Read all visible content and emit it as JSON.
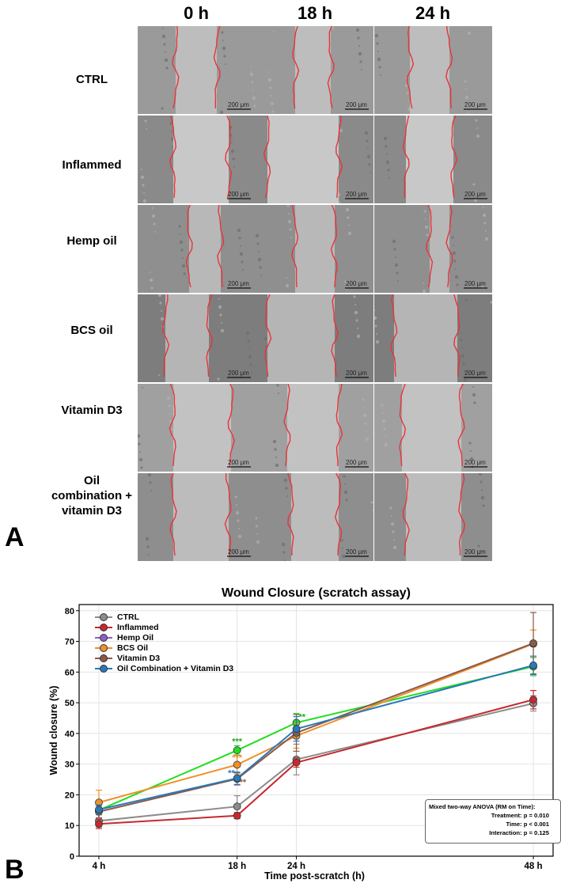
{
  "panel_a": {
    "letter": "A",
    "columns": [
      "0 h",
      "18 h",
      "24 h"
    ],
    "rows": [
      {
        "label": "CTRL"
      },
      {
        "label": "Inflammed"
      },
      {
        "label": "Hemp oil"
      },
      {
        "label": "BCS oil"
      },
      {
        "label": "Vitamin D3"
      },
      {
        "label": "Oil combination + vitamin D3"
      }
    ],
    "scale_bar": "200 μm"
  },
  "panel_b": {
    "letter": "B",
    "stats_box": {
      "title": "Mixed two-way ANOVA (RM on Time):",
      "treatment": "Treatment:  p = 0.010",
      "time": "Time:        p < 0.001",
      "interaction": "Interaction: p = 0.125"
    }
  },
  "chart_data": {
    "type": "line",
    "title": "Wound Closure (scratch assay)",
    "xlabel": "Time post-scratch (h)",
    "ylabel": "Wound closure (%)",
    "x": [
      4,
      18,
      24,
      48
    ],
    "x_tick_labels": [
      "4 h",
      "18 h",
      "24 h",
      "48 h"
    ],
    "xlim": [
      2,
      50
    ],
    "ylim": [
      0,
      82
    ],
    "y_ticks": [
      0,
      10,
      20,
      30,
      40,
      50,
      60,
      70,
      80
    ],
    "grid": true,
    "legend_position": "top-left",
    "series": [
      {
        "name": "CTRL",
        "color": "#8c8c8c",
        "values": [
          11.5,
          16.2,
          31.5,
          49.8
        ],
        "errors": [
          2,
          3.5,
          5,
          2.5
        ]
      },
      {
        "name": "Inflammed",
        "color": "#c8282d",
        "values": [
          10.5,
          13.2,
          30.5,
          51
        ],
        "errors": [
          1.5,
          1,
          1.5,
          3
        ]
      },
      {
        "name": "Hemp Oil",
        "color": "#22dd22",
        "legend_color": "#8a5fc8",
        "values": [
          15,
          34.5,
          43.5,
          61.8
        ],
        "errors": [
          1.5,
          1.5,
          3,
          3
        ]
      },
      {
        "name": "BCS Oil",
        "color": "#f0902a",
        "values": [
          17.5,
          29.8,
          39.2,
          69.2
        ],
        "errors": [
          4,
          3,
          4,
          4.5
        ]
      },
      {
        "name": "Vitamin D3",
        "color": "#8b5a4a",
        "values": [
          14.5,
          25.2,
          40.2,
          69.4
        ],
        "errors": [
          2,
          2,
          6,
          10
        ]
      },
      {
        "name": "Oil Combination + Vitamin D3",
        "color": "#2a78b8",
        "values": [
          15.2,
          25.4,
          41.5,
          62.2
        ],
        "errors": [
          1.5,
          2,
          4,
          3
        ]
      }
    ],
    "annotations": [
      {
        "text": "***",
        "x": 18,
        "y": 36.5,
        "color": "#22aa22"
      },
      {
        "text": "***",
        "x": 18,
        "y": 31.2,
        "color": "#f0902a"
      },
      {
        "text": "**",
        "x": 18,
        "y": 26.2,
        "color": "#2a78b8",
        "align": "left-of"
      },
      {
        "text": "**",
        "x": 18,
        "y": 23.2,
        "color": "#8b5a4a",
        "align": "right-of"
      },
      {
        "text": "**",
        "x": 24,
        "y": 44.5,
        "color": "#22aa22",
        "align": "right-of"
      }
    ]
  }
}
